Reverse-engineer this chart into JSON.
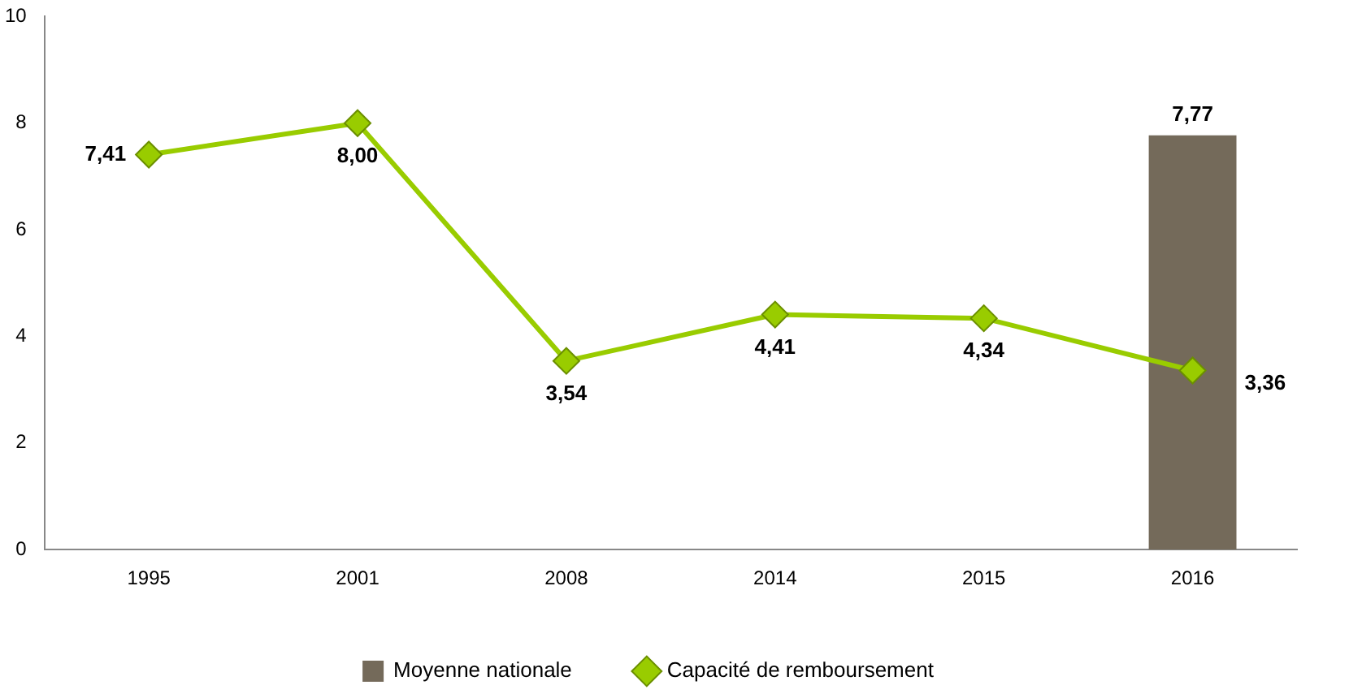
{
  "chart_data": {
    "type": "bar",
    "categories": [
      "1995",
      "2001",
      "2008",
      "2014",
      "2015",
      "2016"
    ],
    "series": [
      {
        "name": "Moyenne nationale",
        "color": "#746a5a",
        "values": [
          null,
          null,
          null,
          null,
          null,
          7.77
        ],
        "value_labels": [
          null,
          null,
          null,
          null,
          null,
          "7,77"
        ]
      },
      {
        "name": "Capacité de remboursement",
        "type": "line",
        "color": "#99cc00",
        "values": [
          7.41,
          8.0,
          3.54,
          4.41,
          4.34,
          3.36
        ],
        "value_labels": [
          "7,41",
          "8,00",
          "3,54",
          "4,41",
          "4,34",
          "3,36"
        ]
      }
    ],
    "ylim": [
      0,
      10
    ],
    "yticks": [
      0,
      2,
      4,
      6,
      8,
      10
    ],
    "grid": false,
    "legend": "bottom",
    "marker": "diamond"
  }
}
